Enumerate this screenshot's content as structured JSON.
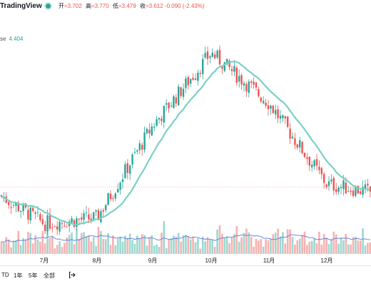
{
  "header": {
    "brand": "TradingView",
    "ohlc": [
      {
        "label": "开",
        "value": "=3.702"
      },
      {
        "label": "高",
        "value": "=3.770"
      },
      {
        "label": "低",
        "value": "=3.479"
      },
      {
        "label": "收",
        "value": "=3.612 -0.090 (-2.43%)"
      }
    ]
  },
  "indicator": {
    "name": "se",
    "value": "4.404"
  },
  "colors": {
    "up": "#26a69a",
    "down": "#ef5350",
    "ma": "#7ccfc6",
    "volume_ma": "#5b7cde"
  },
  "x_axis": {
    "months": [
      "7月",
      "8月",
      "9月",
      "10月",
      "11月",
      "12月"
    ]
  },
  "toolbar": {
    "ranges": [
      "TD",
      "1年",
      "5年",
      "全部"
    ],
    "goto_icon": "goto-date-icon"
  },
  "chart_data": {
    "type": "candlestick",
    "y_axis_visible": false,
    "grid": false,
    "volume_panel": true,
    "series": [
      {
        "name": "price"
      },
      {
        "name": "moving average"
      },
      {
        "name": "volume"
      },
      {
        "name": "volume moving average"
      }
    ],
    "candles_sampled": [
      {
        "x": "start",
        "close": 3.55
      },
      {
        "x": "7月",
        "close": 3.05
      },
      {
        "x": "8月",
        "close": 3.15
      },
      {
        "x": "9月",
        "close": 4.8
      },
      {
        "x": "10月",
        "close": 6.1
      },
      {
        "x": "11月",
        "close": 5.2
      },
      {
        "x": "12月",
        "close": 3.75
      },
      {
        "x": "end",
        "close": 3.612
      }
    ],
    "current_ohlc": {
      "open": 3.702,
      "high": 3.77,
      "low": 3.479,
      "close": 3.612,
      "change": -0.09,
      "change_pct": -2.43
    }
  }
}
